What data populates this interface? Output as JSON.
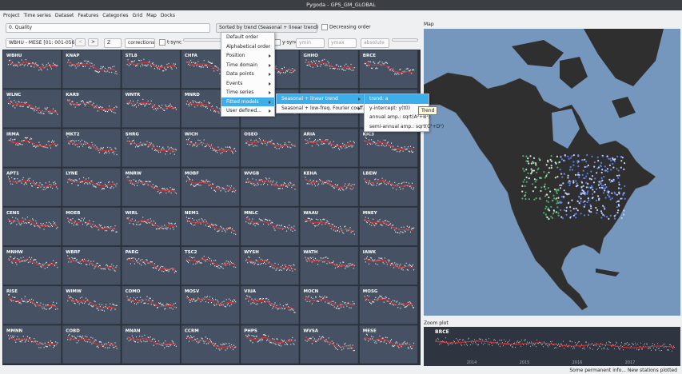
{
  "window": {
    "title": "Pygoda - GPS_GM_GLOBAL"
  },
  "menu": [
    "Project",
    "Time series",
    "Dataset",
    "Features",
    "Categories",
    "Grid",
    "Map",
    "Docks"
  ],
  "toolbar": {
    "category": "0. Quality",
    "sort": "Sorted by trend (Seasonal + linear trend)",
    "decreasing": "Decreasing order",
    "page": "WBHU - MESE [01: 001-056]",
    "prev": "<",
    "next": ">",
    "component": "Z",
    "corrections": "corrections",
    "tsync": "t-sync",
    "ysync": "y-sync",
    "ymin": "ymin",
    "ymax": "ymax",
    "scale": "absolute"
  },
  "sort_menu": {
    "items": [
      "Default order",
      "Alphabetical order",
      "Position",
      "Time domain",
      "Data points",
      "Events",
      "Time series",
      "Fitted models",
      "User defined..."
    ],
    "fitted_submenu": [
      "Seasonal + linear trend",
      "Seasonal + low-freq. Fourier coeff."
    ],
    "trend_submenu": [
      "trend: a",
      "y-intercept: y(t0)",
      "annual amp.: sqrt(A²+B²)",
      "semi-annual amp.: sqrt(C²+D²)"
    ],
    "tooltip": "Trend"
  },
  "grid": {
    "stations": [
      "WBHU",
      "KNAP",
      "STL8",
      "CHFA",
      null,
      "GHHO",
      "BRCE",
      "WLNC",
      "KAR9",
      "WNTR",
      "MNRD",
      null,
      null,
      null,
      "IRMA",
      "MKT2",
      "SHRG",
      "WICH",
      "OSEO",
      "ARIA",
      "KIC3",
      "APT1",
      "LYNE",
      "MNRW",
      "MOBF",
      "WVGB",
      "KEHA",
      "LBEW",
      "CENS",
      "MOEB",
      "WIRL",
      "NEM1",
      "MNLC",
      "WAAU",
      "MNEY",
      "MNHW",
      "WBRF",
      "PARG",
      "TSC2",
      "WYSH",
      "WATH",
      "IAWK",
      "RISE",
      "WIMW",
      "COMO",
      "MOSV",
      "VIUA",
      "MOCN",
      "MOSG",
      "MMNN",
      "COBD",
      "MNAN",
      "CCRM",
      "PHPS",
      "WVSA",
      "MESE"
    ]
  },
  "map": {
    "title": "Map"
  },
  "zoom": {
    "title": "Zoom plot",
    "station": "BRCE",
    "xticks": [
      "2014",
      "2015",
      "2016",
      "2017"
    ]
  },
  "status": "Some permanent info...    New stations plotted"
}
